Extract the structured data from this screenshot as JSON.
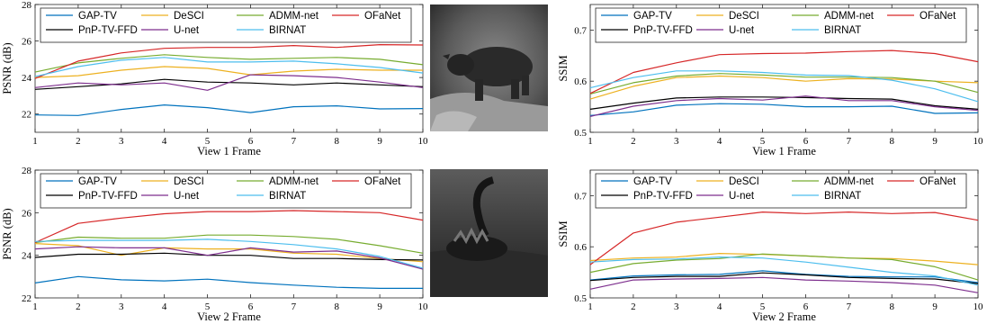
{
  "chart_data": [
    {
      "type": "line",
      "xlabel": "View 1 Frame",
      "ylabel": "PSNR (dB)",
      "x": [
        1,
        2,
        3,
        4,
        5,
        6,
        7,
        8,
        9,
        10
      ],
      "ylim": [
        21,
        28
      ],
      "yticks": [
        22,
        24,
        26,
        28
      ],
      "series": [
        {
          "name": "GAP-TV",
          "color": "#0072bd",
          "values": [
            21.95,
            21.92,
            22.25,
            22.5,
            22.35,
            22.08,
            22.4,
            22.45,
            22.28,
            22.3
          ]
        },
        {
          "name": "DeSCI",
          "color": "#edb120",
          "values": [
            24.0,
            24.1,
            24.4,
            24.6,
            24.5,
            24.15,
            24.35,
            24.45,
            24.4,
            24.4
          ]
        },
        {
          "name": "ADMM-net",
          "color": "#77ac30",
          "values": [
            24.3,
            24.8,
            25.05,
            25.25,
            25.1,
            25.0,
            25.05,
            25.1,
            25.0,
            24.7
          ]
        },
        {
          "name": "OFaNet",
          "color": "#d62728",
          "values": [
            23.95,
            24.9,
            25.35,
            25.6,
            25.65,
            25.65,
            25.75,
            25.65,
            25.8,
            25.78
          ]
        },
        {
          "name": "PnP-TV-FFD",
          "color": "#000000",
          "values": [
            23.35,
            23.5,
            23.65,
            23.9,
            23.75,
            23.7,
            23.6,
            23.7,
            23.6,
            23.5
          ]
        },
        {
          "name": "U-net",
          "color": "#7e2f8e",
          "values": [
            23.45,
            23.7,
            23.6,
            23.7,
            23.3,
            24.15,
            24.1,
            24.0,
            23.75,
            23.45
          ]
        },
        {
          "name": "BIRNAT",
          "color": "#4dbeee",
          "values": [
            24.05,
            24.6,
            24.95,
            25.1,
            24.85,
            24.85,
            24.9,
            24.75,
            24.55,
            24.25
          ]
        }
      ]
    },
    {
      "type": "line",
      "xlabel": "View 1 Frame",
      "ylabel": "SSIM",
      "x": [
        1,
        2,
        3,
        4,
        5,
        6,
        7,
        8,
        9,
        10
      ],
      "ylim": [
        0.5,
        0.75
      ],
      "yticks": [
        0.5,
        0.6,
        0.7
      ],
      "series": [
        {
          "name": "GAP-TV",
          "color": "#0072bd",
          "values": [
            0.533,
            0.54,
            0.553,
            0.556,
            0.555,
            0.55,
            0.55,
            0.551,
            0.537,
            0.538
          ]
        },
        {
          "name": "DeSCI",
          "color": "#edb120",
          "values": [
            0.565,
            0.59,
            0.607,
            0.61,
            0.607,
            0.6,
            0.605,
            0.604,
            0.6,
            0.597
          ]
        },
        {
          "name": "ADMM-net",
          "color": "#77ac30",
          "values": [
            0.575,
            0.597,
            0.61,
            0.615,
            0.612,
            0.608,
            0.608,
            0.607,
            0.6,
            0.578
          ]
        },
        {
          "name": "OFaNet",
          "color": "#d62728",
          "values": [
            0.576,
            0.617,
            0.636,
            0.652,
            0.654,
            0.655,
            0.658,
            0.66,
            0.654,
            0.638
          ]
        },
        {
          "name": "PnP-TV-FFD",
          "color": "#000000",
          "values": [
            0.545,
            0.557,
            0.567,
            0.569,
            0.569,
            0.568,
            0.566,
            0.565,
            0.552,
            0.545
          ]
        },
        {
          "name": "U-net",
          "color": "#7e2f8e",
          "values": [
            0.531,
            0.551,
            0.562,
            0.566,
            0.563,
            0.571,
            0.562,
            0.562,
            0.55,
            0.543
          ]
        },
        {
          "name": "BIRNAT",
          "color": "#4dbeee",
          "values": [
            0.587,
            0.607,
            0.62,
            0.62,
            0.617,
            0.612,
            0.611,
            0.602,
            0.585,
            0.56
          ]
        }
      ]
    },
    {
      "type": "line",
      "xlabel": "View 2 Frame",
      "ylabel": "PSNR (dB)",
      "x": [
        1,
        2,
        3,
        4,
        5,
        6,
        7,
        8,
        9,
        10
      ],
      "ylim": [
        22,
        28
      ],
      "yticks": [
        22,
        24,
        26,
        28
      ],
      "series": [
        {
          "name": "GAP-TV",
          "color": "#0072bd",
          "values": [
            22.7,
            23.0,
            22.85,
            22.8,
            22.88,
            22.72,
            22.6,
            22.5,
            22.45,
            22.45
          ]
        },
        {
          "name": "DeSCI",
          "color": "#edb120",
          "values": [
            24.55,
            24.45,
            24.0,
            24.35,
            24.3,
            24.3,
            24.1,
            24.05,
            23.85,
            23.7
          ]
        },
        {
          "name": "ADMM-net",
          "color": "#77ac30",
          "values": [
            24.6,
            24.85,
            24.8,
            24.8,
            24.95,
            24.95,
            24.88,
            24.75,
            24.45,
            24.1
          ]
        },
        {
          "name": "OFaNet",
          "color": "#d62728",
          "values": [
            24.6,
            25.5,
            25.75,
            25.95,
            26.05,
            26.05,
            26.1,
            26.05,
            26.0,
            25.65
          ]
        },
        {
          "name": "PnP-TV-FFD",
          "color": "#000000",
          "values": [
            23.9,
            24.05,
            24.05,
            24.1,
            24.0,
            24.0,
            23.85,
            23.85,
            23.8,
            23.78
          ]
        },
        {
          "name": "U-net",
          "color": "#7e2f8e",
          "values": [
            24.3,
            24.4,
            24.35,
            24.35,
            24.0,
            24.35,
            24.15,
            24.2,
            23.88,
            23.35
          ]
        },
        {
          "name": "BIRNAT",
          "color": "#4dbeee",
          "values": [
            24.65,
            24.7,
            24.7,
            24.7,
            24.75,
            24.65,
            24.5,
            24.3,
            23.95,
            23.4
          ]
        }
      ]
    },
    {
      "type": "line",
      "xlabel": "View 2 Frame",
      "ylabel": "SSIM",
      "x": [
        1,
        2,
        3,
        4,
        5,
        6,
        7,
        8,
        9,
        10
      ],
      "ylim": [
        0.5,
        0.75
      ],
      "yticks": [
        0.5,
        0.6,
        0.7
      ],
      "series": [
        {
          "name": "GAP-TV",
          "color": "#0072bd",
          "values": [
            0.535,
            0.543,
            0.545,
            0.546,
            0.553,
            0.546,
            0.542,
            0.541,
            0.541,
            0.53
          ]
        },
        {
          "name": "DeSCI",
          "color": "#edb120",
          "values": [
            0.573,
            0.578,
            0.58,
            0.587,
            0.585,
            0.582,
            0.578,
            0.577,
            0.572,
            0.565
          ]
        },
        {
          "name": "ADMM-net",
          "color": "#77ac30",
          "values": [
            0.55,
            0.567,
            0.574,
            0.577,
            0.586,
            0.582,
            0.578,
            0.575,
            0.561,
            0.535
          ]
        },
        {
          "name": "OFaNet",
          "color": "#d62728",
          "values": [
            0.565,
            0.627,
            0.648,
            0.658,
            0.668,
            0.665,
            0.668,
            0.665,
            0.667,
            0.652
          ]
        },
        {
          "name": "PnP-TV-FFD",
          "color": "#000000",
          "values": [
            0.534,
            0.54,
            0.542,
            0.542,
            0.549,
            0.545,
            0.54,
            0.538,
            0.537,
            0.528
          ]
        },
        {
          "name": "U-net",
          "color": "#7e2f8e",
          "values": [
            0.517,
            0.535,
            0.537,
            0.538,
            0.54,
            0.535,
            0.533,
            0.53,
            0.525,
            0.51
          ]
        },
        {
          "name": "BIRNAT",
          "color": "#4dbeee",
          "values": [
            0.57,
            0.575,
            0.576,
            0.58,
            0.578,
            0.57,
            0.56,
            0.55,
            0.543,
            0.525
          ]
        }
      ]
    }
  ],
  "legend_order": [
    "GAP-TV",
    "DeSCI",
    "ADMM-net",
    "OFaNet",
    "PnP-TV-FFD",
    "U-net",
    "BIRNAT"
  ],
  "photos": [
    {
      "subject": "bear",
      "description": "grayscale frame of a bear walking on rocks"
    },
    {
      "subject": "swan",
      "description": "grayscale frame of a black swan on water"
    }
  ]
}
